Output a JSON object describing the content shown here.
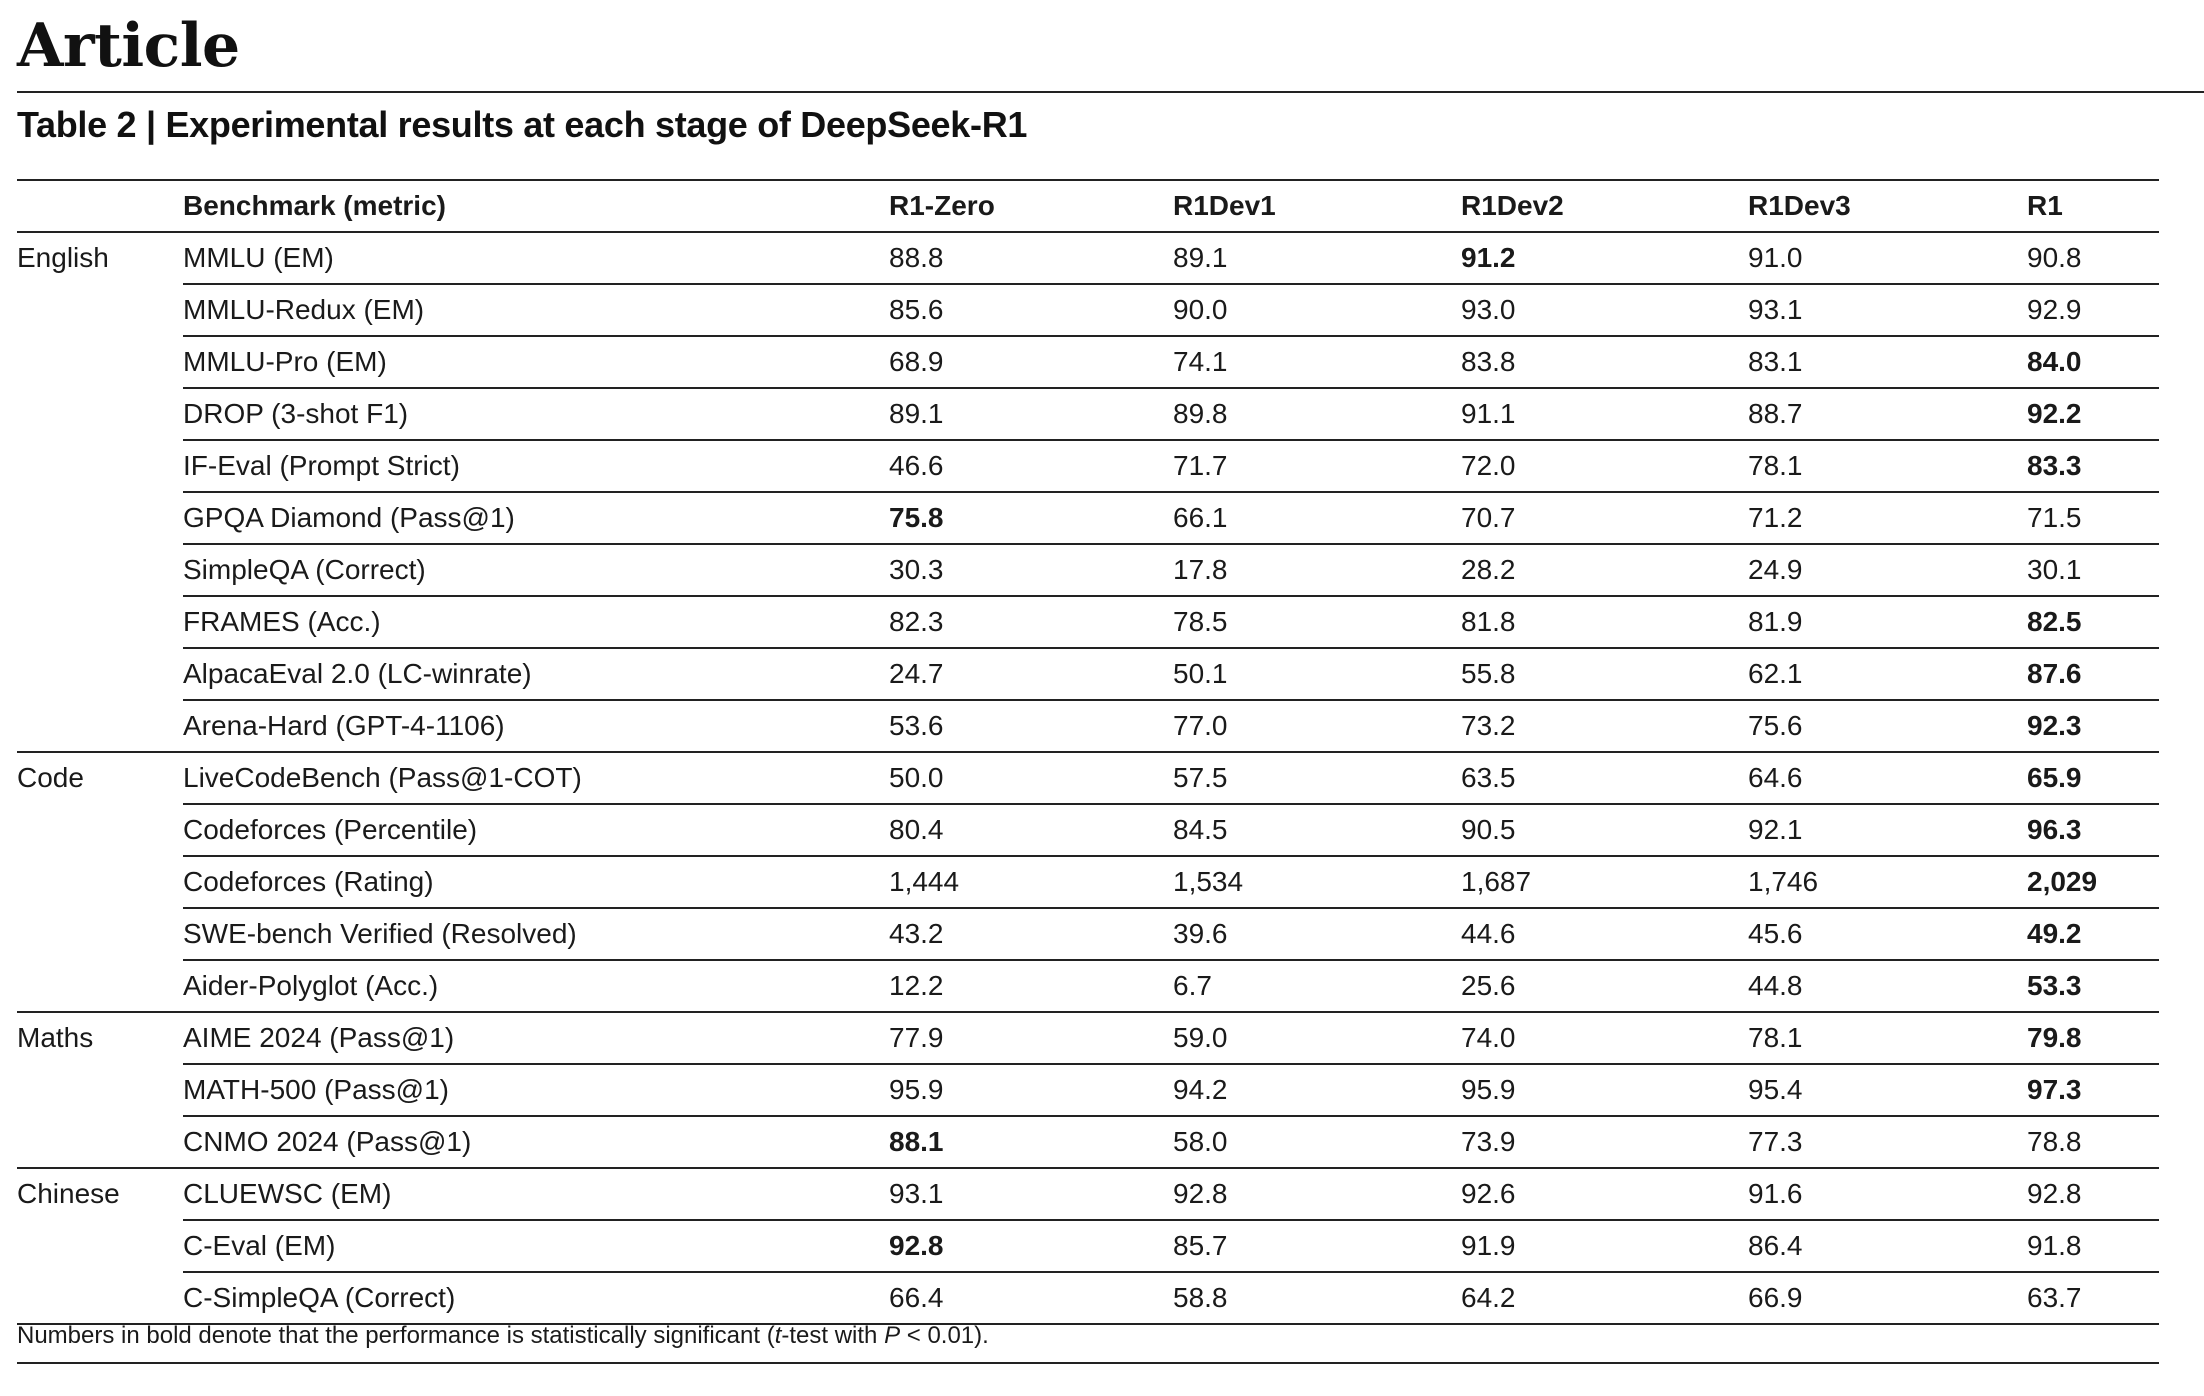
{
  "header": {
    "section": "Article",
    "table_title": "Table 2 | Experimental results at each stage of DeepSeek-R1"
  },
  "table": {
    "columns": [
      "Benchmark (metric)",
      "R1-Zero",
      "R1Dev1",
      "R1Dev2",
      "R1Dev3",
      "R1"
    ],
    "groups": [
      {
        "name": "English",
        "rows": [
          {
            "benchmark": "MMLU (EM)",
            "values": [
              "88.8",
              "89.1",
              "91.2",
              "91.0",
              "90.8"
            ],
            "bold": [
              false,
              false,
              true,
              false,
              false
            ]
          },
          {
            "benchmark": "MMLU-Redux (EM)",
            "values": [
              "85.6",
              "90.0",
              "93.0",
              "93.1",
              "92.9"
            ],
            "bold": [
              false,
              false,
              false,
              false,
              false
            ]
          },
          {
            "benchmark": "MMLU-Pro (EM)",
            "values": [
              "68.9",
              "74.1",
              "83.8",
              "83.1",
              "84.0"
            ],
            "bold": [
              false,
              false,
              false,
              false,
              true
            ]
          },
          {
            "benchmark": "DROP (3-shot F1)",
            "values": [
              "89.1",
              "89.8",
              "91.1",
              "88.7",
              "92.2"
            ],
            "bold": [
              false,
              false,
              false,
              false,
              true
            ]
          },
          {
            "benchmark": "IF-Eval (Prompt Strict)",
            "values": [
              "46.6",
              "71.7",
              "72.0",
              "78.1",
              "83.3"
            ],
            "bold": [
              false,
              false,
              false,
              false,
              true
            ]
          },
          {
            "benchmark": "GPQA Diamond (Pass@1)",
            "values": [
              "75.8",
              "66.1",
              "70.7",
              "71.2",
              "71.5"
            ],
            "bold": [
              true,
              false,
              false,
              false,
              false
            ]
          },
          {
            "benchmark": "SimpleQA (Correct)",
            "values": [
              "30.3",
              "17.8",
              "28.2",
              "24.9",
              "30.1"
            ],
            "bold": [
              false,
              false,
              false,
              false,
              false
            ]
          },
          {
            "benchmark": "FRAMES (Acc.)",
            "values": [
              "82.3",
              "78.5",
              "81.8",
              "81.9",
              "82.5"
            ],
            "bold": [
              false,
              false,
              false,
              false,
              true
            ]
          },
          {
            "benchmark": "AlpacaEval 2.0 (LC-winrate)",
            "values": [
              "24.7",
              "50.1",
              "55.8",
              "62.1",
              "87.6"
            ],
            "bold": [
              false,
              false,
              false,
              false,
              true
            ]
          },
          {
            "benchmark": "Arena-Hard (GPT-4-1106)",
            "values": [
              "53.6",
              "77.0",
              "73.2",
              "75.6",
              "92.3"
            ],
            "bold": [
              false,
              false,
              false,
              false,
              true
            ]
          }
        ]
      },
      {
        "name": "Code",
        "rows": [
          {
            "benchmark": "LiveCodeBench (Pass@1-COT)",
            "values": [
              "50.0",
              "57.5",
              "63.5",
              "64.6",
              "65.9"
            ],
            "bold": [
              false,
              false,
              false,
              false,
              true
            ]
          },
          {
            "benchmark": "Codeforces (Percentile)",
            "values": [
              "80.4",
              "84.5",
              "90.5",
              "92.1",
              "96.3"
            ],
            "bold": [
              false,
              false,
              false,
              false,
              true
            ]
          },
          {
            "benchmark": "Codeforces (Rating)",
            "values": [
              "1,444",
              "1,534",
              "1,687",
              "1,746",
              "2,029"
            ],
            "bold": [
              false,
              false,
              false,
              false,
              true
            ]
          },
          {
            "benchmark": "SWE-bench Verified (Resolved)",
            "values": [
              "43.2",
              "39.6",
              "44.6",
              "45.6",
              "49.2"
            ],
            "bold": [
              false,
              false,
              false,
              false,
              true
            ]
          },
          {
            "benchmark": "Aider-Polyglot (Acc.)",
            "values": [
              "12.2",
              "6.7",
              "25.6",
              "44.8",
              "53.3"
            ],
            "bold": [
              false,
              false,
              false,
              false,
              true
            ]
          }
        ]
      },
      {
        "name": "Maths",
        "rows": [
          {
            "benchmark": "AIME 2024 (Pass@1)",
            "values": [
              "77.9",
              "59.0",
              "74.0",
              "78.1",
              "79.8"
            ],
            "bold": [
              false,
              false,
              false,
              false,
              true
            ]
          },
          {
            "benchmark": "MATH-500 (Pass@1)",
            "values": [
              "95.9",
              "94.2",
              "95.9",
              "95.4",
              "97.3"
            ],
            "bold": [
              false,
              false,
              false,
              false,
              true
            ]
          },
          {
            "benchmark": "CNMO 2024 (Pass@1)",
            "values": [
              "88.1",
              "58.0",
              "73.9",
              "77.3",
              "78.8"
            ],
            "bold": [
              true,
              false,
              false,
              false,
              false
            ]
          }
        ]
      },
      {
        "name": "Chinese",
        "rows": [
          {
            "benchmark": "CLUEWSC (EM)",
            "values": [
              "93.1",
              "92.8",
              "92.6",
              "91.6",
              "92.8"
            ],
            "bold": [
              false,
              false,
              false,
              false,
              false
            ]
          },
          {
            "benchmark": "C-Eval (EM)",
            "values": [
              "92.8",
              "85.7",
              "91.9",
              "86.4",
              "91.8"
            ],
            "bold": [
              true,
              false,
              false,
              false,
              false
            ]
          },
          {
            "benchmark": "C-SimpleQA (Correct)",
            "values": [
              "66.4",
              "58.8",
              "64.2",
              "66.9",
              "63.7"
            ],
            "bold": [
              false,
              false,
              false,
              false,
              false
            ]
          }
        ]
      }
    ]
  },
  "footnote": {
    "prefix": "Numbers in bold denote that the performance is statistically significant (",
    "t_italic": "t",
    "middle": "-test with ",
    "p_italic": "P",
    "suffix": " < 0.01)."
  }
}
